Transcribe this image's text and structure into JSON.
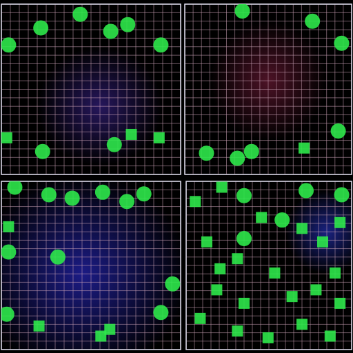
{
  "chart_data": [
    {
      "type": "scatter",
      "grid": true,
      "tick_labels": false,
      "xlim": [
        0,
        20
      ],
      "ylim": [
        0,
        20
      ],
      "xticks": [
        0,
        1,
        2,
        3,
        4,
        5,
        6,
        7,
        8,
        9,
        10,
        11,
        12,
        13,
        14,
        15,
        16,
        17,
        18,
        19,
        20
      ],
      "yticks": [
        0,
        1,
        2,
        3,
        4,
        5,
        6,
        7,
        8,
        9,
        10,
        11,
        12,
        13,
        14,
        15,
        16,
        17,
        18,
        19,
        20
      ],
      "series": [
        {
          "color": "#2ee84a",
          "marker": "circle",
          "x": [
            0.8,
            4.4,
            8.8,
            12.2,
            14.1,
            17.8,
            4.6,
            12.6
          ],
          "values": [
            15.2,
            17.2,
            18.8,
            16.8,
            17.6,
            15.2,
            2.7,
            3.5
          ]
        },
        {
          "color": "#2ee84a",
          "marker": "square",
          "x": [
            0.6,
            14.5,
            17.6
          ],
          "values": [
            4.3,
            4.7,
            4.3
          ]
        }
      ]
    },
    {
      "type": "scatter",
      "grid": true,
      "tick_labels": false,
      "xlim": [
        0,
        20
      ],
      "ylim": [
        0,
        20
      ],
      "xticks": [
        0,
        1,
        2,
        3,
        4,
        5,
        6,
        7,
        8,
        9,
        10,
        11,
        12,
        13,
        14,
        15,
        16,
        17,
        18,
        19,
        20
      ],
      "yticks": [
        0,
        1,
        2,
        3,
        4,
        5,
        6,
        7,
        8,
        9,
        10,
        11,
        12,
        13,
        14,
        15,
        16,
        17,
        18,
        19,
        20
      ],
      "series": [
        {
          "color": "#2ee84a",
          "marker": "circle",
          "x": [
            6.9,
            15.3,
            18.8,
            18.4,
            8.0,
            6.3,
            2.6
          ],
          "values": [
            19.2,
            18.0,
            15.4,
            5.1,
            2.7,
            1.9,
            2.5
          ]
        },
        {
          "color": "#2ee84a",
          "marker": "square",
          "x": [
            14.3
          ],
          "values": [
            3.1
          ]
        }
      ]
    },
    {
      "type": "scatter",
      "grid": true,
      "tick_labels": false,
      "xlim": [
        0,
        20
      ],
      "ylim": [
        0,
        20
      ],
      "xticks": [
        0,
        1,
        2,
        3,
        4,
        5,
        6,
        7,
        8,
        9,
        10,
        11,
        12,
        13,
        14,
        15,
        16,
        17,
        18,
        19,
        20
      ],
      "yticks": [
        0,
        1,
        2,
        3,
        4,
        5,
        6,
        7,
        8,
        9,
        10,
        11,
        12,
        13,
        14,
        15,
        16,
        17,
        18,
        19,
        20
      ],
      "series": [
        {
          "color": "#2ee84a",
          "marker": "circle",
          "x": [
            1.5,
            5.3,
            7.9,
            11.3,
            14.0,
            15.9,
            0.8,
            17.8,
            0.6,
            6.3,
            19.1
          ],
          "values": [
            19.3,
            18.4,
            18.0,
            18.7,
            17.6,
            18.5,
            11.6,
            4.4,
            4.2,
            11.0,
            7.8
          ]
        },
        {
          "color": "#2ee84a",
          "marker": "square",
          "x": [
            0.8,
            4.2,
            12.1,
            11.1
          ],
          "values": [
            14.6,
            2.8,
            2.4,
            1.6
          ]
        }
      ]
    },
    {
      "type": "scatter",
      "grid": true,
      "tick_labels": false,
      "xlim": [
        0,
        20
      ],
      "ylim": [
        0,
        20
      ],
      "xticks": [
        0,
        1,
        2,
        3,
        4,
        5,
        6,
        7,
        8,
        9,
        10,
        11,
        12,
        13,
        14,
        15,
        16,
        17,
        18,
        19,
        20
      ],
      "yticks": [
        0,
        1,
        2,
        3,
        4,
        5,
        6,
        7,
        8,
        9,
        10,
        11,
        12,
        13,
        14,
        15,
        16,
        17,
        18,
        19,
        20
      ],
      "series": [
        {
          "color": "#2ee84a",
          "marker": "circle",
          "x": [
            7.0,
            14.5,
            18.8,
            11.6,
            7.0
          ],
          "values": [
            18.3,
            18.9,
            18.4,
            15.4,
            13.2
          ]
        },
        {
          "color": "#2ee84a",
          "marker": "square",
          "x": [
            1.1,
            4.3,
            2.5,
            6.2,
            9.1,
            14.0,
            16.5,
            18.6,
            3.7,
            7.0,
            10.7,
            12.8,
            15.7,
            18.6,
            1.7,
            6.2,
            9.9,
            14.0,
            17.4,
            4.1,
            18.0
          ],
          "values": [
            17.6,
            19.3,
            12.8,
            10.8,
            15.7,
            14.4,
            12.8,
            15.1,
            7.1,
            5.5,
            9.1,
            6.3,
            7.1,
            5.5,
            3.7,
            2.2,
            1.4,
            3.0,
            1.6,
            9.6,
            9.1
          ]
        }
      ]
    }
  ]
}
